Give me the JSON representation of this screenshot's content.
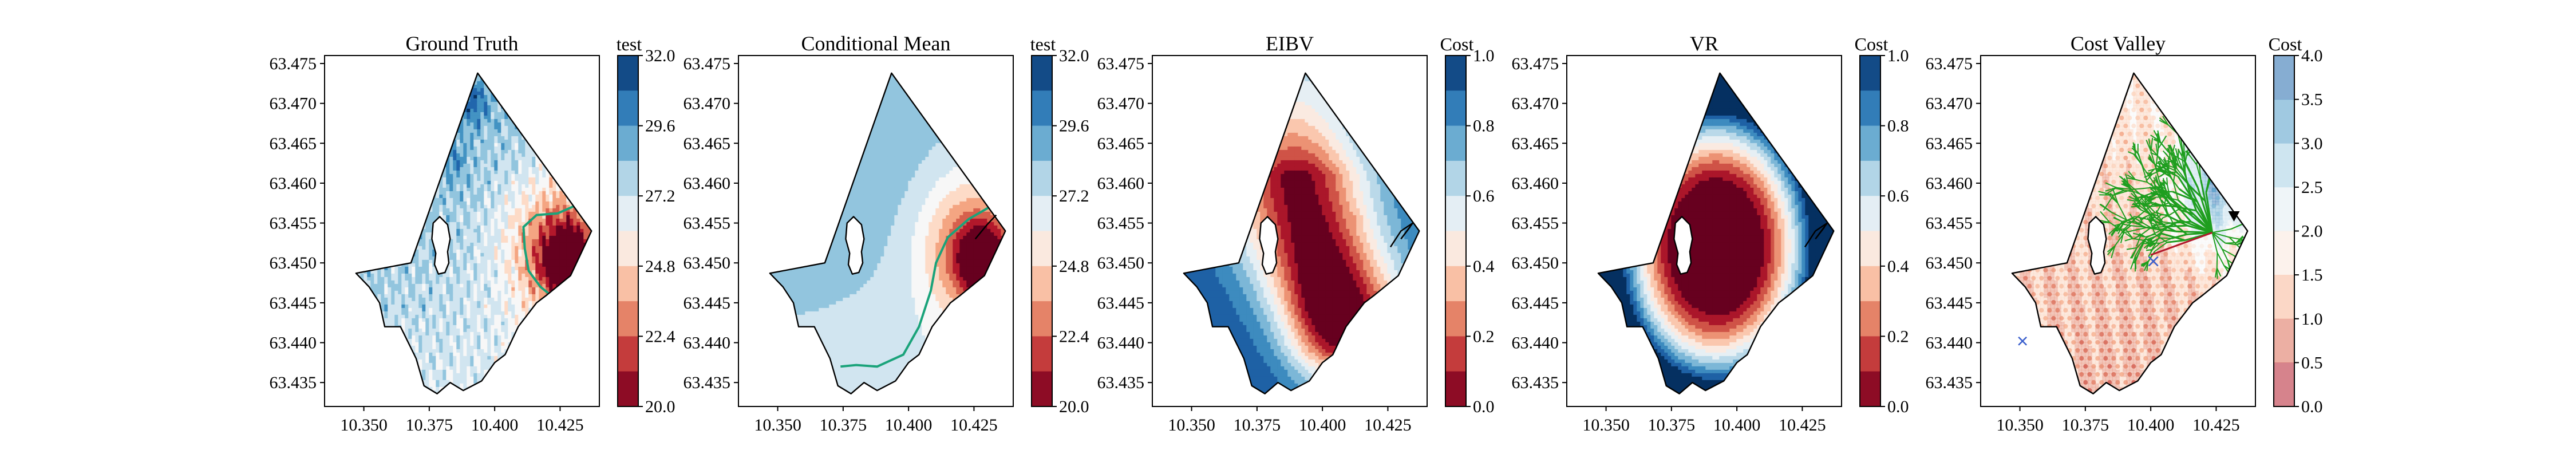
{
  "chart_data": [
    {
      "type": "heatmap",
      "title": "Ground Truth",
      "colorbar_label": "test",
      "colorbar_ticks": [
        "32.0",
        "29.6",
        "27.2",
        "24.8",
        "22.4",
        "20.0"
      ],
      "colorbar_range": [
        20.0,
        32.0
      ],
      "colormap": "RdBu",
      "xlim": [
        10.335,
        10.44
      ],
      "ylim": [
        63.432,
        63.476
      ],
      "xticks": [
        "10.350",
        "10.375",
        "10.400",
        "10.425"
      ],
      "yticks": [
        "63.475",
        "63.470",
        "63.465",
        "63.460",
        "63.455",
        "63.450",
        "63.445",
        "63.440",
        "63.435"
      ]
    },
    {
      "type": "heatmap",
      "title": "Conditional Mean",
      "colorbar_label": "test",
      "colorbar_ticks": [
        "32.0",
        "29.6",
        "27.2",
        "24.8",
        "22.4",
        "20.0"
      ],
      "colorbar_range": [
        20.0,
        32.0
      ],
      "colormap": "RdBu",
      "xlim": [
        10.335,
        10.44
      ],
      "ylim": [
        63.432,
        63.476
      ],
      "xticks": [
        "10.350",
        "10.375",
        "10.400",
        "10.425"
      ],
      "yticks": [
        "63.475",
        "63.470",
        "63.465",
        "63.460",
        "63.455",
        "63.450",
        "63.445",
        "63.440",
        "63.435"
      ]
    },
    {
      "type": "heatmap",
      "title": "EIBV",
      "colorbar_label": "Cost",
      "colorbar_ticks": [
        "1.0",
        "0.8",
        "0.6",
        "0.4",
        "0.2",
        "0.0"
      ],
      "colorbar_range": [
        0.0,
        1.0
      ],
      "colormap": "RdBu",
      "xlim": [
        10.335,
        10.44
      ],
      "ylim": [
        63.432,
        63.476
      ],
      "xticks": [
        "10.350",
        "10.375",
        "10.400",
        "10.425"
      ],
      "yticks": [
        "63.475",
        "63.470",
        "63.465",
        "63.460",
        "63.455",
        "63.450",
        "63.445",
        "63.440",
        "63.435"
      ]
    },
    {
      "type": "heatmap",
      "title": "VR",
      "colorbar_label": "Cost",
      "colorbar_ticks": [
        "1.0",
        "0.8",
        "0.6",
        "0.4",
        "0.2",
        "0.0"
      ],
      "colorbar_range": [
        0.0,
        1.0
      ],
      "colormap": "RdBu",
      "xlim": [
        10.335,
        10.44
      ],
      "ylim": [
        63.432,
        63.476
      ],
      "xticks": [
        "10.350",
        "10.375",
        "10.400",
        "10.425"
      ],
      "yticks": [
        "63.475",
        "63.470",
        "63.465",
        "63.460",
        "63.455",
        "63.450",
        "63.445",
        "63.440",
        "63.435"
      ]
    },
    {
      "type": "heatmap",
      "title": "Cost Valley",
      "colorbar_label": "Cost",
      "colorbar_ticks": [
        "4.0",
        "3.5",
        "3.0",
        "2.5",
        "2.0",
        "1.5",
        "1.0",
        "0.5",
        "0.0"
      ],
      "colorbar_range": [
        0.0,
        4.0
      ],
      "colormap": "RdBu (semi-transparent)",
      "xlim": [
        10.335,
        10.44
      ],
      "ylim": [
        63.432,
        63.476
      ],
      "xticks": [
        "10.350",
        "10.375",
        "10.400",
        "10.425"
      ],
      "yticks": [
        "63.475",
        "63.470",
        "63.465",
        "63.460",
        "63.455",
        "63.450",
        "63.445",
        "63.440",
        "63.435"
      ]
    }
  ],
  "colors": {
    "rdbu": [
      "#67001f",
      "#b2182b",
      "#d6604d",
      "#f4a582",
      "#fddbc7",
      "#f7f7f7",
      "#d1e5f0",
      "#92c5de",
      "#4393c3",
      "#2166ac",
      "#053061"
    ],
    "contour": "#1aa37a",
    "tree": "#1f9e1f",
    "outline": "#000000"
  }
}
